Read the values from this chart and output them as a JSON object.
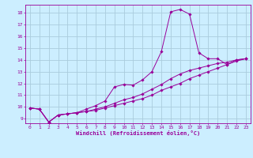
{
  "xlabel": "Windchill (Refroidissement éolien,°C)",
  "bg_color": "#cceeff",
  "grid_color": "#aaccdd",
  "line_color": "#990099",
  "xlim": [
    -0.5,
    23.5
  ],
  "ylim": [
    8.6,
    18.7
  ],
  "xticks": [
    0,
    1,
    2,
    3,
    4,
    5,
    6,
    7,
    8,
    9,
    10,
    11,
    12,
    13,
    14,
    15,
    16,
    17,
    18,
    19,
    20,
    21,
    22,
    23
  ],
  "yticks": [
    9,
    10,
    11,
    12,
    13,
    14,
    15,
    16,
    17,
    18
  ],
  "line1_x": [
    0,
    1,
    2,
    3,
    4,
    5,
    6,
    7,
    8,
    9,
    10,
    11,
    12,
    13,
    14,
    15,
    16,
    17,
    18,
    19,
    20,
    21,
    22,
    23
  ],
  "line1_y": [
    9.9,
    9.8,
    8.7,
    9.3,
    9.4,
    9.5,
    9.8,
    10.1,
    10.5,
    11.7,
    11.9,
    11.85,
    12.3,
    13.0,
    14.7,
    18.1,
    18.3,
    17.9,
    14.6,
    14.1,
    14.1,
    13.6,
    14.0,
    14.1
  ],
  "line2_x": [
    0,
    1,
    2,
    3,
    4,
    5,
    6,
    7,
    8,
    9,
    10,
    11,
    12,
    13,
    14,
    15,
    16,
    17,
    18,
    19,
    20,
    21,
    22,
    23
  ],
  "line2_y": [
    9.9,
    9.8,
    8.7,
    9.3,
    9.4,
    9.5,
    9.6,
    9.8,
    10.0,
    10.3,
    10.6,
    10.8,
    11.1,
    11.5,
    11.9,
    12.4,
    12.8,
    13.1,
    13.3,
    13.5,
    13.7,
    13.8,
    14.0,
    14.1
  ],
  "line3_x": [
    0,
    1,
    2,
    3,
    4,
    5,
    6,
    7,
    8,
    9,
    10,
    11,
    12,
    13,
    14,
    15,
    16,
    17,
    18,
    19,
    20,
    21,
    22,
    23
  ],
  "line3_y": [
    9.9,
    9.8,
    8.7,
    9.3,
    9.4,
    9.5,
    9.6,
    9.7,
    9.9,
    10.1,
    10.3,
    10.5,
    10.7,
    11.0,
    11.4,
    11.7,
    12.0,
    12.4,
    12.7,
    13.0,
    13.3,
    13.6,
    13.9,
    14.1
  ]
}
